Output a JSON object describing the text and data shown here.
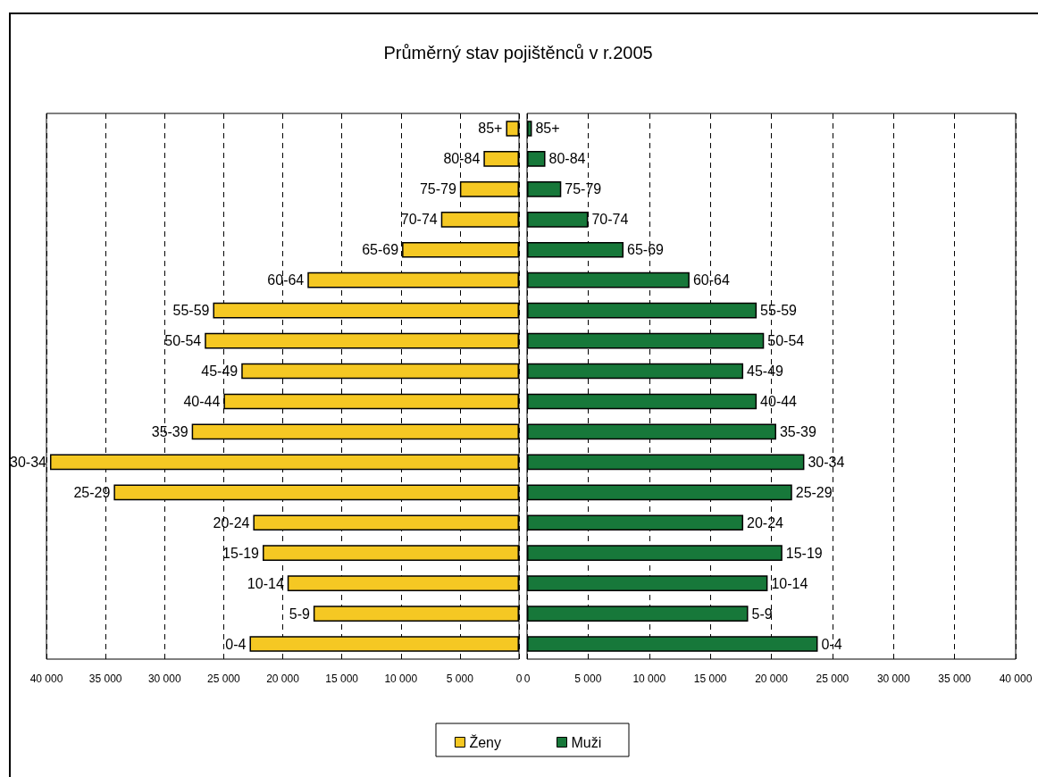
{
  "chart_data": [
    {
      "type": "bar",
      "orientation": "horizontal",
      "title": "Průměrný stav pojištěnců v r.2005",
      "categories": [
        "85+",
        "80-84",
        "75-79",
        "70-74",
        "65-69",
        "60-64",
        "55-59",
        "50-54",
        "45-49",
        "40-44",
        "35-39",
        "30-34",
        "25-29",
        "20-24",
        "15-19",
        "10-14",
        "5-9",
        "0-4"
      ],
      "series": [
        {
          "name": "Ženy",
          "color": "#f5c823",
          "values": [
            1100,
            3000,
            5000,
            6600,
            9900,
            17900,
            25900,
            26600,
            23500,
            25000,
            27700,
            39700,
            34300,
            22500,
            21700,
            19600,
            17400,
            22800
          ]
        }
      ],
      "xlim": [
        40000,
        0
      ],
      "xticks": [
        {
          "value": 40000,
          "label": "40 000"
        },
        {
          "value": 35000,
          "label": "35 000"
        },
        {
          "value": 30000,
          "label": "30 000"
        },
        {
          "value": 25000,
          "label": "25 000"
        },
        {
          "value": 20000,
          "label": "20 000"
        },
        {
          "value": 15000,
          "label": "15 000"
        },
        {
          "value": 10000,
          "label": "10 000"
        },
        {
          "value": 5000,
          "label": "5 000"
        },
        0
      ],
      "grid": "x",
      "legend": "bottom",
      "tick_labels": "x"
    },
    {
      "type": "bar",
      "orientation": "horizontal",
      "categories": [
        "85+",
        "80-84",
        "75-79",
        "70-74",
        "65-69",
        "60-64",
        "55-59",
        "50-54",
        "45-49",
        "40-44",
        "35-39",
        "30-34",
        "25-29",
        "20-24",
        "15-19",
        "10-14",
        "5-9",
        "0-4"
      ],
      "series": [
        {
          "name": "Muži",
          "color": "#17783a",
          "values": [
            400,
            1500,
            2800,
            5000,
            7900,
            13300,
            18800,
            19400,
            17700,
            18800,
            20400,
            22700,
            21700,
            17700,
            20900,
            19700,
            18100,
            23800
          ]
        }
      ],
      "xlim": [
        0,
        40000
      ],
      "xticks": [
        0,
        {
          "value": 5000,
          "label": "5 000"
        },
        {
          "value": 10000,
          "label": "10 000"
        },
        {
          "value": 15000,
          "label": "15 000"
        },
        {
          "value": 20000,
          "label": "20 000"
        },
        {
          "value": 25000,
          "label": "25 000"
        },
        {
          "value": 30000,
          "label": "30 000"
        },
        {
          "value": 35000,
          "label": "35 000"
        },
        {
          "value": 40000,
          "label": "40 000"
        }
      ],
      "grid": "x",
      "legend": "bottom",
      "tick_labels": "x"
    }
  ]
}
